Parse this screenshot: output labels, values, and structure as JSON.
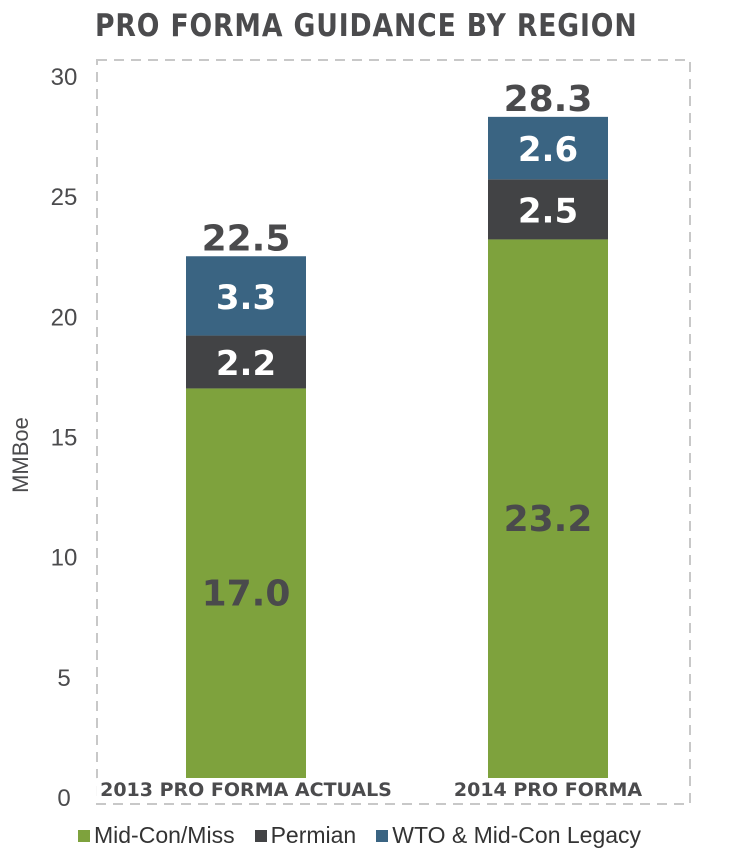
{
  "chart_data": {
    "type": "bar",
    "stacked": true,
    "title": "PRO FORMA GUIDANCE BY REGION",
    "xlabel": "",
    "ylabel": "MMBoe",
    "ylim": [
      0,
      30
    ],
    "yticks": [
      0,
      5,
      10,
      15,
      20,
      25,
      30
    ],
    "grid": false,
    "categories": [
      "2013 PRO FORMA ACTUALS",
      "2014 PRO FORMA"
    ],
    "totals": [
      22.5,
      28.3
    ],
    "series": [
      {
        "name": "Mid-Con/Miss",
        "color": "#7ea23d",
        "label_color": "#4a4a4c",
        "values": [
          17.0,
          23.2
        ],
        "labels": [
          "17.0",
          "23.2"
        ]
      },
      {
        "name": "Permian",
        "color": "#424345",
        "label_color": "#ffffff",
        "values": [
          2.2,
          2.5
        ],
        "labels": [
          "2.2",
          "2.5"
        ]
      },
      {
        "name": "WTO & Mid-Con Legacy",
        "color": "#3a6482",
        "label_color": "#ffffff",
        "values": [
          3.3,
          2.6
        ],
        "labels": [
          "3.3",
          "2.6"
        ]
      }
    ],
    "legend_position": "bottom"
  }
}
